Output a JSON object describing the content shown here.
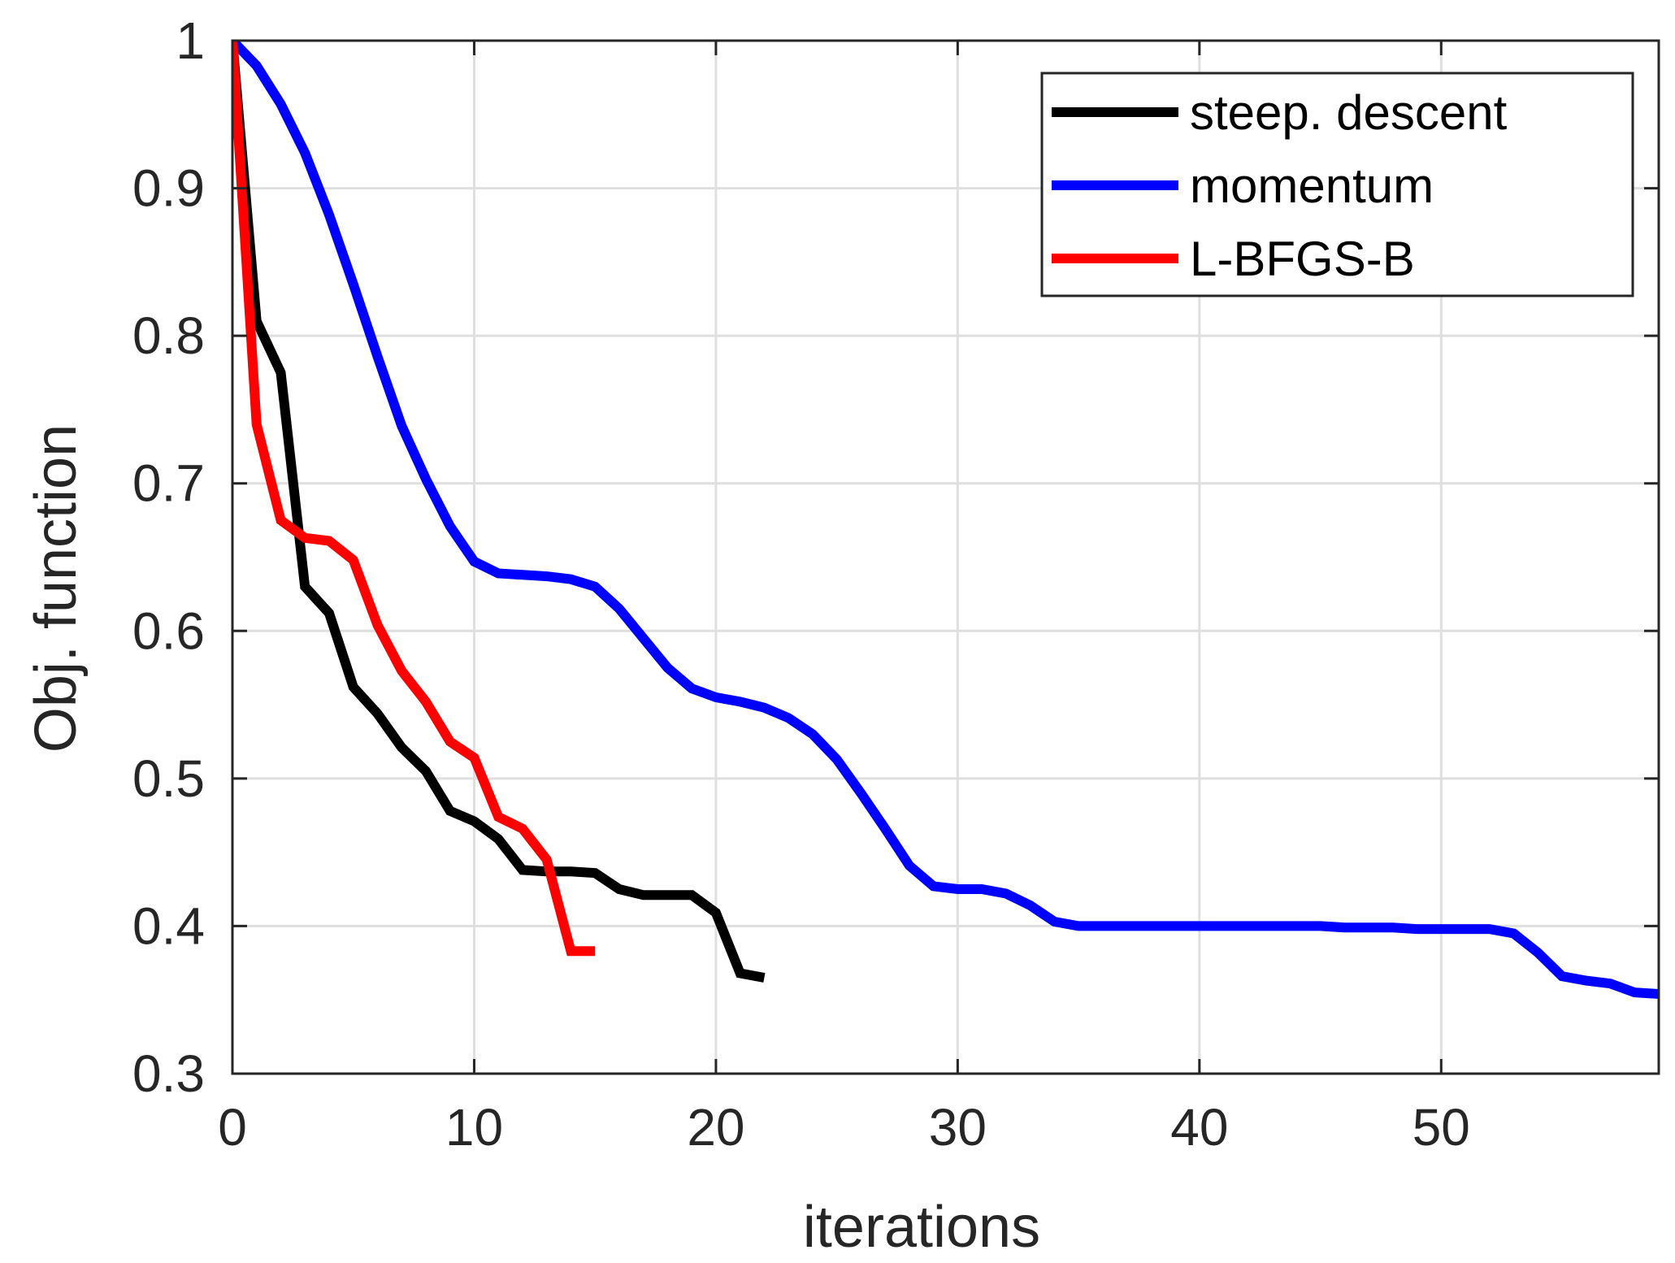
{
  "chart_data": {
    "type": "line",
    "title": "",
    "xlabel": "iterations",
    "ylabel": "Obj. function",
    "xlim": [
      0,
      59
    ],
    "ylim": [
      0.3,
      1.0
    ],
    "xticks": [
      0,
      10,
      20,
      30,
      40,
      50
    ],
    "xtick_labels": [
      "0",
      "10",
      "20",
      "30",
      "40",
      "50"
    ],
    "yticks": [
      0.3,
      0.4,
      0.5,
      0.6,
      0.7,
      0.8,
      0.9,
      1.0
    ],
    "ytick_labels": [
      "0.3",
      "0.4",
      "0.5",
      "0.6",
      "0.7",
      "0.8",
      "0.9",
      "1"
    ],
    "grid": true,
    "legend_position": "top-right",
    "series": [
      {
        "name": "steep. descent",
        "color": "#000000",
        "x": [
          0,
          1,
          2,
          3,
          4,
          5,
          6,
          7,
          8,
          9,
          10,
          11,
          12,
          13,
          14,
          15,
          16,
          17,
          18,
          19,
          20,
          21,
          22
        ],
        "y": [
          1.0,
          0.81,
          0.775,
          0.63,
          0.612,
          0.562,
          0.544,
          0.521,
          0.505,
          0.478,
          0.471,
          0.459,
          0.438,
          0.437,
          0.437,
          0.436,
          0.425,
          0.421,
          0.421,
          0.421,
          0.409,
          0.368,
          0.365
        ]
      },
      {
        "name": "momentum",
        "color": "#0000ff",
        "x": [
          0,
          1,
          2,
          3,
          4,
          5,
          6,
          7,
          8,
          9,
          10,
          11,
          12,
          13,
          14,
          15,
          16,
          17,
          18,
          19,
          20,
          21,
          22,
          23,
          24,
          25,
          26,
          27,
          28,
          29,
          30,
          31,
          32,
          33,
          34,
          35,
          36,
          37,
          38,
          39,
          40,
          41,
          42,
          43,
          44,
          45,
          46,
          47,
          48,
          49,
          50,
          51,
          52,
          53,
          54,
          55,
          56,
          57,
          58,
          59
        ],
        "y": [
          1.0,
          0.983,
          0.957,
          0.924,
          0.882,
          0.835,
          0.786,
          0.739,
          0.703,
          0.671,
          0.647,
          0.639,
          0.638,
          0.637,
          0.635,
          0.63,
          0.615,
          0.595,
          0.575,
          0.561,
          0.555,
          0.552,
          0.548,
          0.541,
          0.53,
          0.513,
          0.49,
          0.466,
          0.441,
          0.427,
          0.425,
          0.425,
          0.422,
          0.414,
          0.403,
          0.4,
          0.4,
          0.4,
          0.4,
          0.4,
          0.4,
          0.4,
          0.4,
          0.4,
          0.4,
          0.4,
          0.399,
          0.399,
          0.399,
          0.398,
          0.398,
          0.398,
          0.398,
          0.395,
          0.382,
          0.366,
          0.363,
          0.361,
          0.355,
          0.354
        ]
      },
      {
        "name": "L-BFGS-B",
        "color": "#ff0000",
        "x": [
          0,
          1,
          2,
          3,
          4,
          5,
          6,
          7,
          8,
          9,
          10,
          11,
          12,
          13,
          14,
          15
        ],
        "y": [
          1.0,
          0.74,
          0.675,
          0.663,
          0.661,
          0.648,
          0.604,
          0.573,
          0.552,
          0.525,
          0.514,
          0.474,
          0.466,
          0.445,
          0.383,
          0.383
        ]
      }
    ]
  }
}
